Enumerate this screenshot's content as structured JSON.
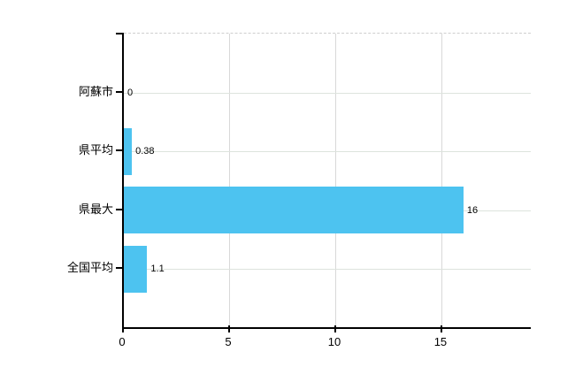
{
  "chart_data": {
    "type": "bar",
    "orientation": "horizontal",
    "title": "",
    "xlabel": "",
    "ylabel": "",
    "categories": [
      "阿蘇市",
      "県平均",
      "県最大",
      "全国平均"
    ],
    "values": [
      0,
      0.38,
      16,
      1.1
    ],
    "value_labels": [
      "0",
      "0.38",
      "16",
      "1.1"
    ],
    "x_ticks": [
      0,
      5,
      10,
      15
    ],
    "x_tick_labels": [
      "0",
      "5",
      "10",
      "15"
    ],
    "xlim": [
      0,
      19.17
    ],
    "grid": true,
    "legend": false,
    "colors": {
      "bar": "#4dc3f0",
      "axis": "#000000",
      "vertical_gridline": "#d8d8d8",
      "row_gridline": "#dde3dd",
      "top_border": "#cfcfcf",
      "text": "#000000"
    }
  }
}
